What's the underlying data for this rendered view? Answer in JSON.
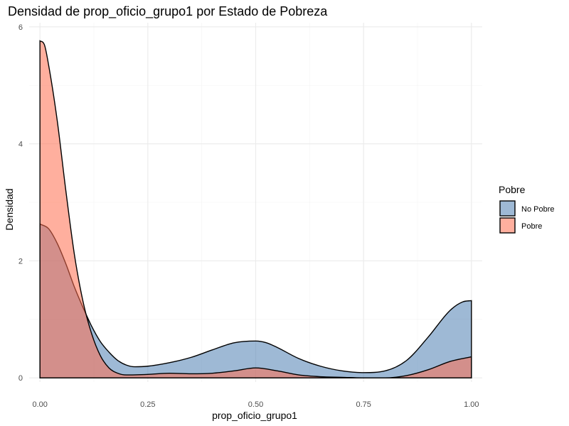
{
  "chart_data": {
    "type": "area",
    "title": "Densidad de prop_oficio_grupo1 por Estado de Pobreza",
    "xlabel": "prop_oficio_grupo1",
    "ylabel": "Densidad",
    "xlim": [
      -0.025,
      1.025
    ],
    "ylim": [
      -0.07,
      6.07
    ],
    "x_ticks": [
      0.0,
      0.25,
      0.5,
      0.75,
      1.0
    ],
    "x_tick_labels": [
      "0.00",
      "0.25",
      "0.50",
      "0.75",
      "1.00"
    ],
    "y_ticks": [
      0,
      2,
      4,
      6
    ],
    "y_tick_labels": [
      "0",
      "2",
      "4",
      "6"
    ],
    "grid": true,
    "legend": {
      "title": "Pobre",
      "position": "right"
    },
    "series": [
      {
        "name": "No Pobre",
        "color": "#4f7fb3",
        "x": [
          0.0,
          0.02,
          0.04,
          0.06,
          0.08,
          0.1,
          0.12,
          0.14,
          0.16,
          0.18,
          0.2,
          0.22,
          0.25,
          0.3,
          0.35,
          0.4,
          0.45,
          0.5,
          0.525,
          0.55,
          0.6,
          0.65,
          0.7,
          0.75,
          0.8,
          0.85,
          0.9,
          0.95,
          0.98,
          1.0
        ],
        "values": [
          2.63,
          2.55,
          2.3,
          1.95,
          1.55,
          1.2,
          0.88,
          0.62,
          0.44,
          0.3,
          0.22,
          0.19,
          0.2,
          0.26,
          0.35,
          0.48,
          0.6,
          0.63,
          0.6,
          0.52,
          0.33,
          0.2,
          0.12,
          0.09,
          0.12,
          0.3,
          0.7,
          1.15,
          1.3,
          1.32
        ]
      },
      {
        "name": "Pobre",
        "color": "#ff6e4f",
        "x": [
          0.0,
          0.01,
          0.02,
          0.04,
          0.06,
          0.08,
          0.1,
          0.12,
          0.14,
          0.16,
          0.18,
          0.2,
          0.25,
          0.3,
          0.35,
          0.4,
          0.45,
          0.5,
          0.55,
          0.6,
          0.65,
          0.7,
          0.75,
          0.8,
          0.85,
          0.9,
          0.95,
          1.0
        ],
        "values": [
          5.76,
          5.7,
          5.35,
          4.4,
          3.2,
          2.1,
          1.3,
          0.75,
          0.38,
          0.17,
          0.08,
          0.05,
          0.06,
          0.08,
          0.07,
          0.08,
          0.12,
          0.17,
          0.12,
          0.05,
          0.02,
          0.01,
          0.0,
          0.0,
          0.04,
          0.14,
          0.28,
          0.36
        ]
      }
    ]
  }
}
